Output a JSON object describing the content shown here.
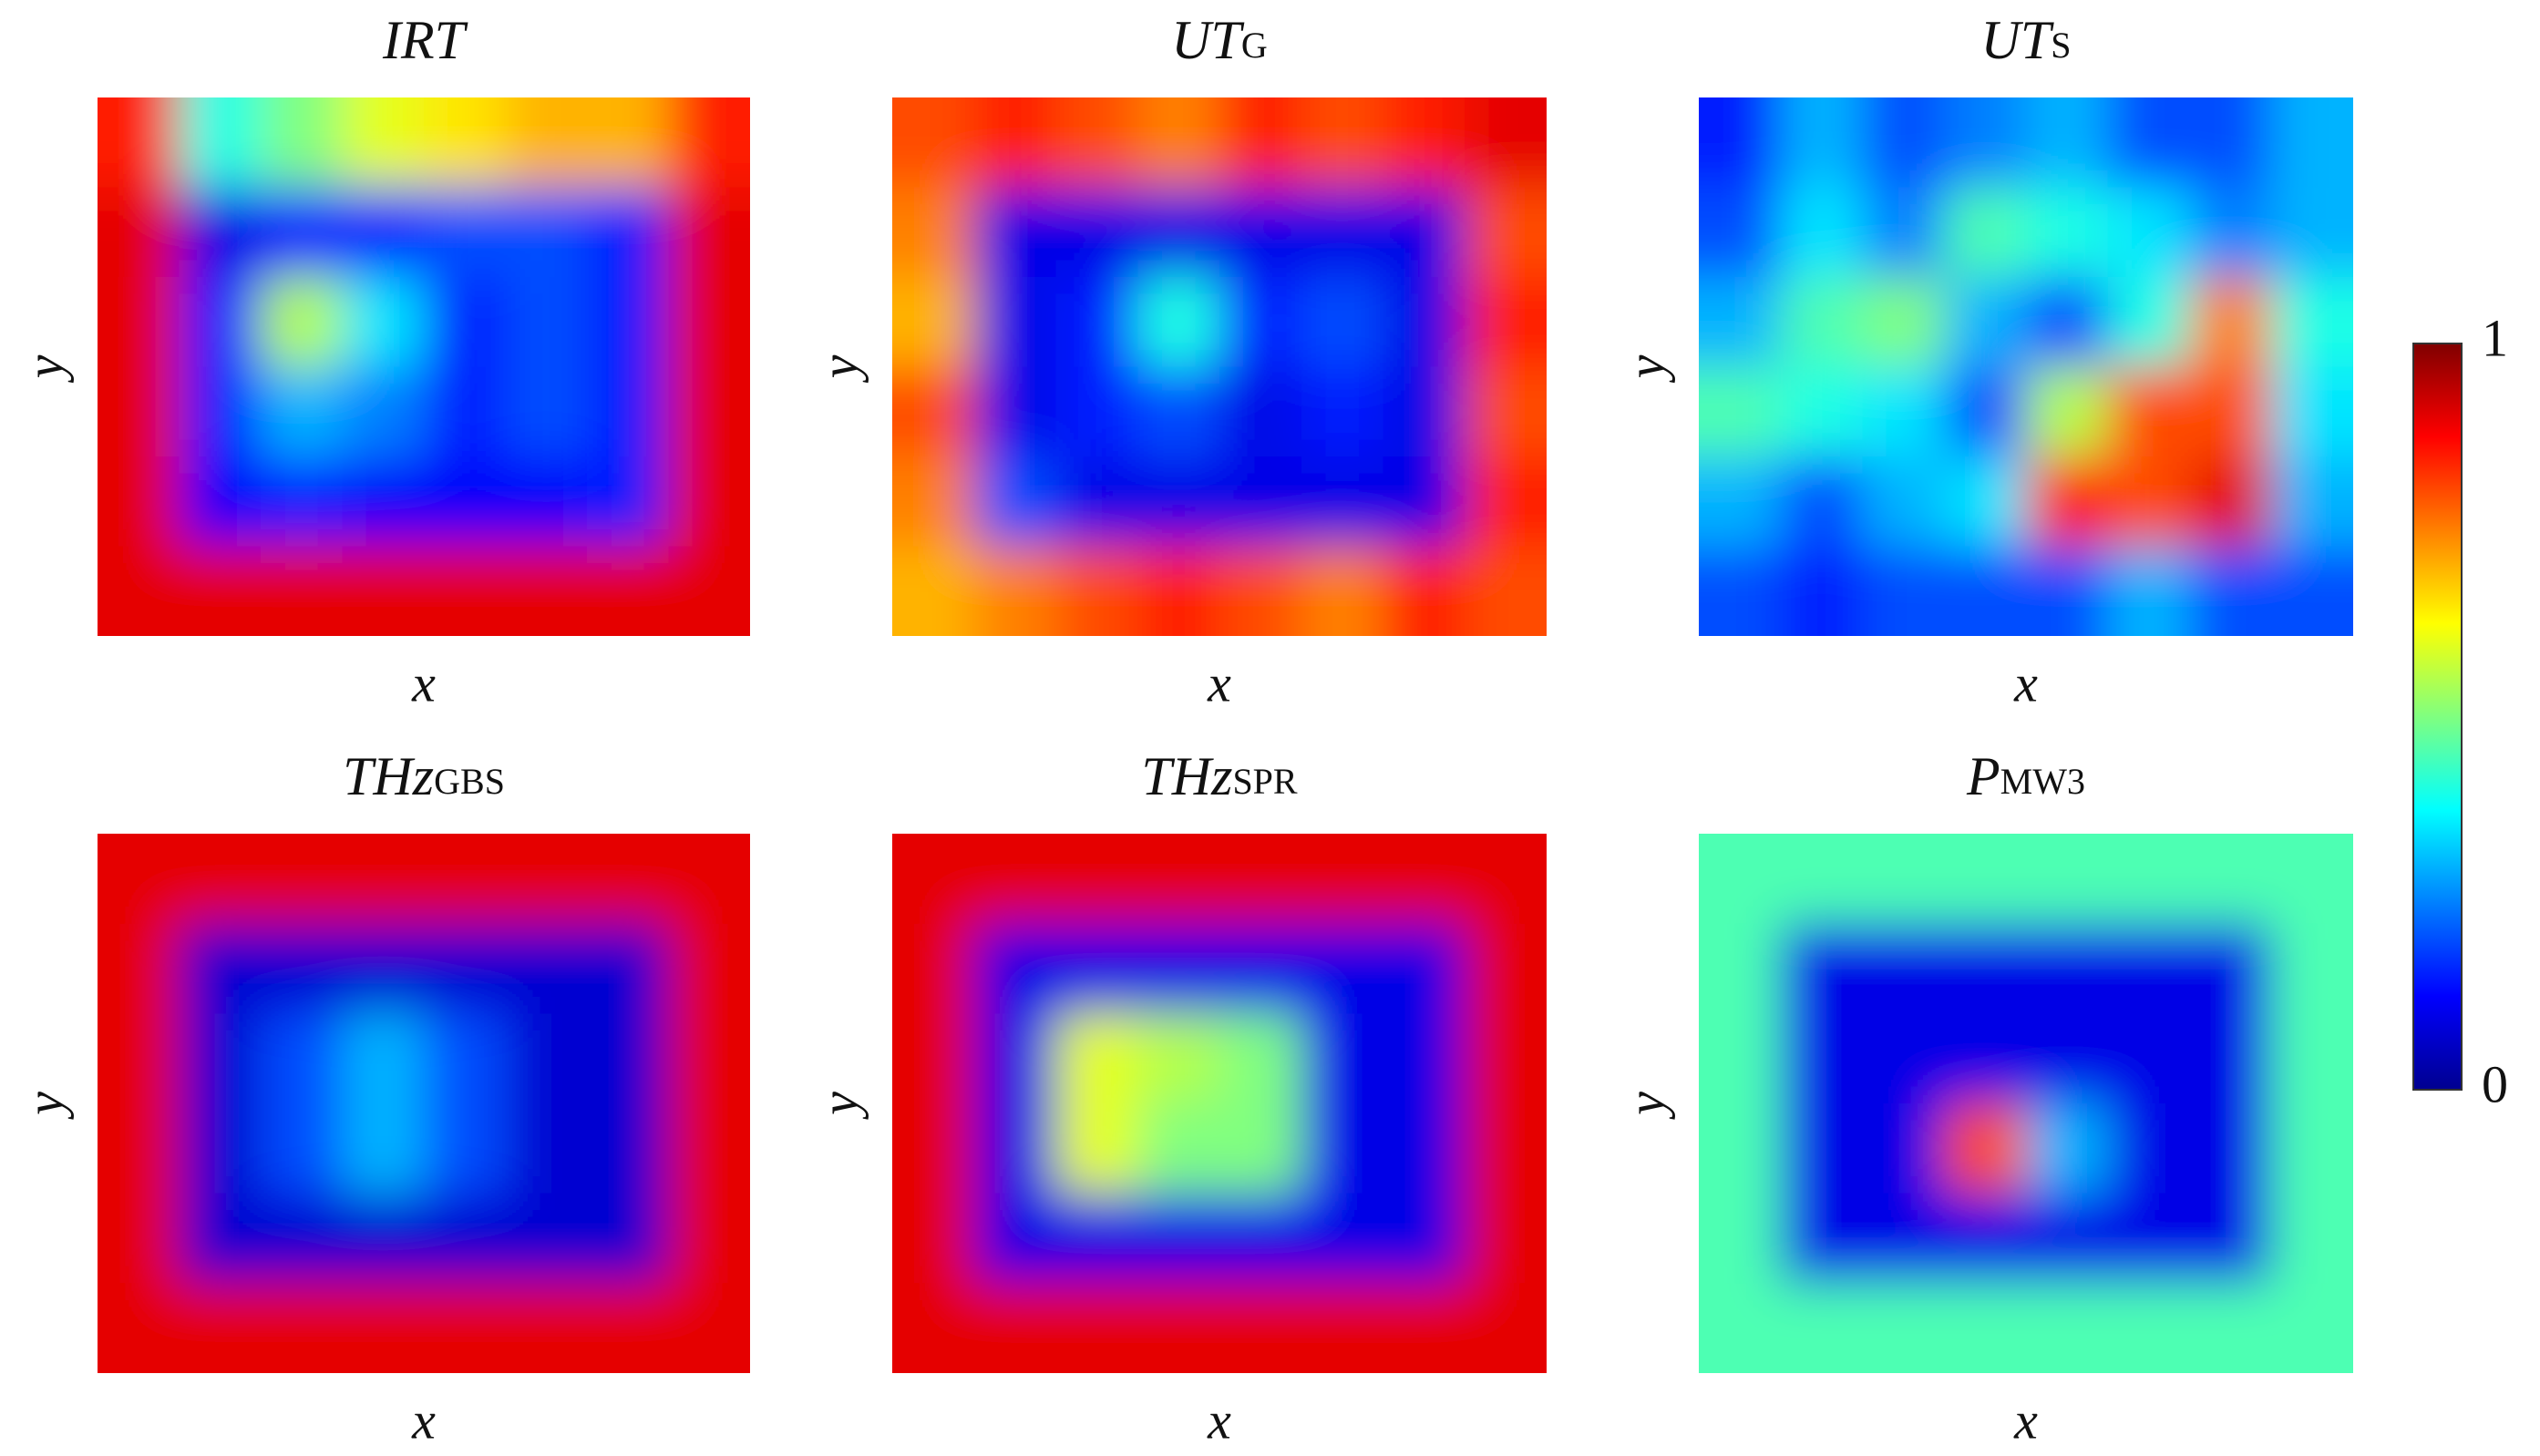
{
  "chart_data": [
    {
      "type": "heatmap",
      "title": "IRT",
      "xlabel": "x",
      "ylabel": "y",
      "values": [
        [
          0.85,
          0.4,
          0.5,
          0.6,
          0.65,
          0.7,
          0.7,
          0.85
        ],
        [
          0.9,
          0.1,
          0.15,
          0.15,
          0.2,
          0.2,
          0.15,
          0.9
        ],
        [
          0.9,
          0.15,
          0.55,
          0.35,
          0.15,
          0.2,
          0.15,
          0.9
        ],
        [
          0.9,
          0.15,
          0.3,
          0.25,
          0.15,
          0.2,
          0.15,
          0.9
        ],
        [
          0.9,
          0.12,
          0.15,
          0.12,
          0.12,
          0.12,
          0.15,
          0.9
        ],
        [
          0.9,
          0.9,
          0.9,
          0.9,
          0.9,
          0.9,
          0.9,
          0.9
        ]
      ]
    },
    {
      "type": "heatmap",
      "title": "UT",
      "title_sub": "G",
      "xlabel": "x",
      "ylabel": "y",
      "values": [
        [
          0.8,
          0.85,
          0.8,
          0.75,
          0.85,
          0.8,
          0.85,
          0.9
        ],
        [
          0.75,
          0.1,
          0.1,
          0.1,
          0.1,
          0.1,
          0.1,
          0.8
        ],
        [
          0.7,
          0.1,
          0.15,
          0.4,
          0.15,
          0.2,
          0.1,
          0.85
        ],
        [
          0.8,
          0.1,
          0.15,
          0.2,
          0.1,
          0.15,
          0.1,
          0.8
        ],
        [
          0.75,
          0.2,
          0.1,
          0.1,
          0.1,
          0.1,
          0.1,
          0.85
        ],
        [
          0.7,
          0.75,
          0.8,
          0.85,
          0.8,
          0.75,
          0.85,
          0.8
        ]
      ]
    },
    {
      "type": "heatmap",
      "title": "UT",
      "title_sub": "S",
      "xlabel": "x",
      "ylabel": "y",
      "values": [
        [
          0.15,
          0.3,
          0.2,
          0.25,
          0.3,
          0.2,
          0.2,
          0.3
        ],
        [
          0.2,
          0.35,
          0.25,
          0.45,
          0.4,
          0.35,
          0.25,
          0.3
        ],
        [
          0.3,
          0.45,
          0.5,
          0.3,
          0.2,
          0.4,
          0.75,
          0.4
        ],
        [
          0.45,
          0.4,
          0.35,
          0.2,
          0.55,
          0.8,
          0.8,
          0.35
        ],
        [
          0.3,
          0.2,
          0.3,
          0.35,
          0.85,
          0.8,
          0.9,
          0.3
        ],
        [
          0.2,
          0.15,
          0.2,
          0.2,
          0.2,
          0.3,
          0.2,
          0.2
        ]
      ]
    },
    {
      "type": "heatmap",
      "title": "THz",
      "title_sub": "GBS",
      "xlabel": "x",
      "ylabel": "y",
      "values": [
        [
          0.9,
          0.9,
          0.9,
          0.9,
          0.9,
          0.9,
          0.9,
          0.9
        ],
        [
          0.9,
          0.08,
          0.08,
          0.08,
          0.08,
          0.08,
          0.08,
          0.9
        ],
        [
          0.9,
          0.08,
          0.2,
          0.3,
          0.2,
          0.08,
          0.08,
          0.9
        ],
        [
          0.9,
          0.08,
          0.2,
          0.3,
          0.2,
          0.08,
          0.08,
          0.9
        ],
        [
          0.9,
          0.08,
          0.08,
          0.08,
          0.08,
          0.08,
          0.08,
          0.9
        ],
        [
          0.9,
          0.9,
          0.9,
          0.9,
          0.9,
          0.9,
          0.9,
          0.9
        ]
      ]
    },
    {
      "type": "heatmap",
      "title": "THz",
      "title_sub": "SPR",
      "xlabel": "x",
      "ylabel": "y",
      "values": [
        [
          0.9,
          0.9,
          0.9,
          0.9,
          0.9,
          0.9,
          0.9,
          0.9
        ],
        [
          0.9,
          0.1,
          0.1,
          0.1,
          0.1,
          0.1,
          0.1,
          0.9
        ],
        [
          0.9,
          0.1,
          0.6,
          0.55,
          0.5,
          0.1,
          0.1,
          0.9
        ],
        [
          0.9,
          0.1,
          0.6,
          0.5,
          0.5,
          0.1,
          0.1,
          0.9
        ],
        [
          0.9,
          0.1,
          0.1,
          0.1,
          0.1,
          0.1,
          0.1,
          0.9
        ],
        [
          0.9,
          0.9,
          0.9,
          0.9,
          0.9,
          0.9,
          0.9,
          0.9
        ]
      ]
    },
    {
      "type": "heatmap",
      "title": "P",
      "title_sub": "MW3",
      "xlabel": "x",
      "ylabel": "y",
      "values": [
        [
          0.45,
          0.45,
          0.45,
          0.45,
          0.45,
          0.45,
          0.45,
          0.45
        ],
        [
          0.45,
          0.1,
          0.1,
          0.1,
          0.1,
          0.1,
          0.1,
          0.45
        ],
        [
          0.45,
          0.1,
          0.1,
          0.1,
          0.1,
          0.1,
          0.1,
          0.45
        ],
        [
          0.45,
          0.1,
          0.1,
          0.8,
          0.3,
          0.1,
          0.1,
          0.45
        ],
        [
          0.45,
          0.1,
          0.1,
          0.1,
          0.1,
          0.1,
          0.1,
          0.45
        ],
        [
          0.45,
          0.45,
          0.45,
          0.45,
          0.45,
          0.45,
          0.45,
          0.45
        ]
      ]
    }
  ],
  "colorbar": {
    "clim": [
      0,
      1
    ],
    "ticks": [
      0,
      1
    ],
    "colormap": "jet"
  }
}
